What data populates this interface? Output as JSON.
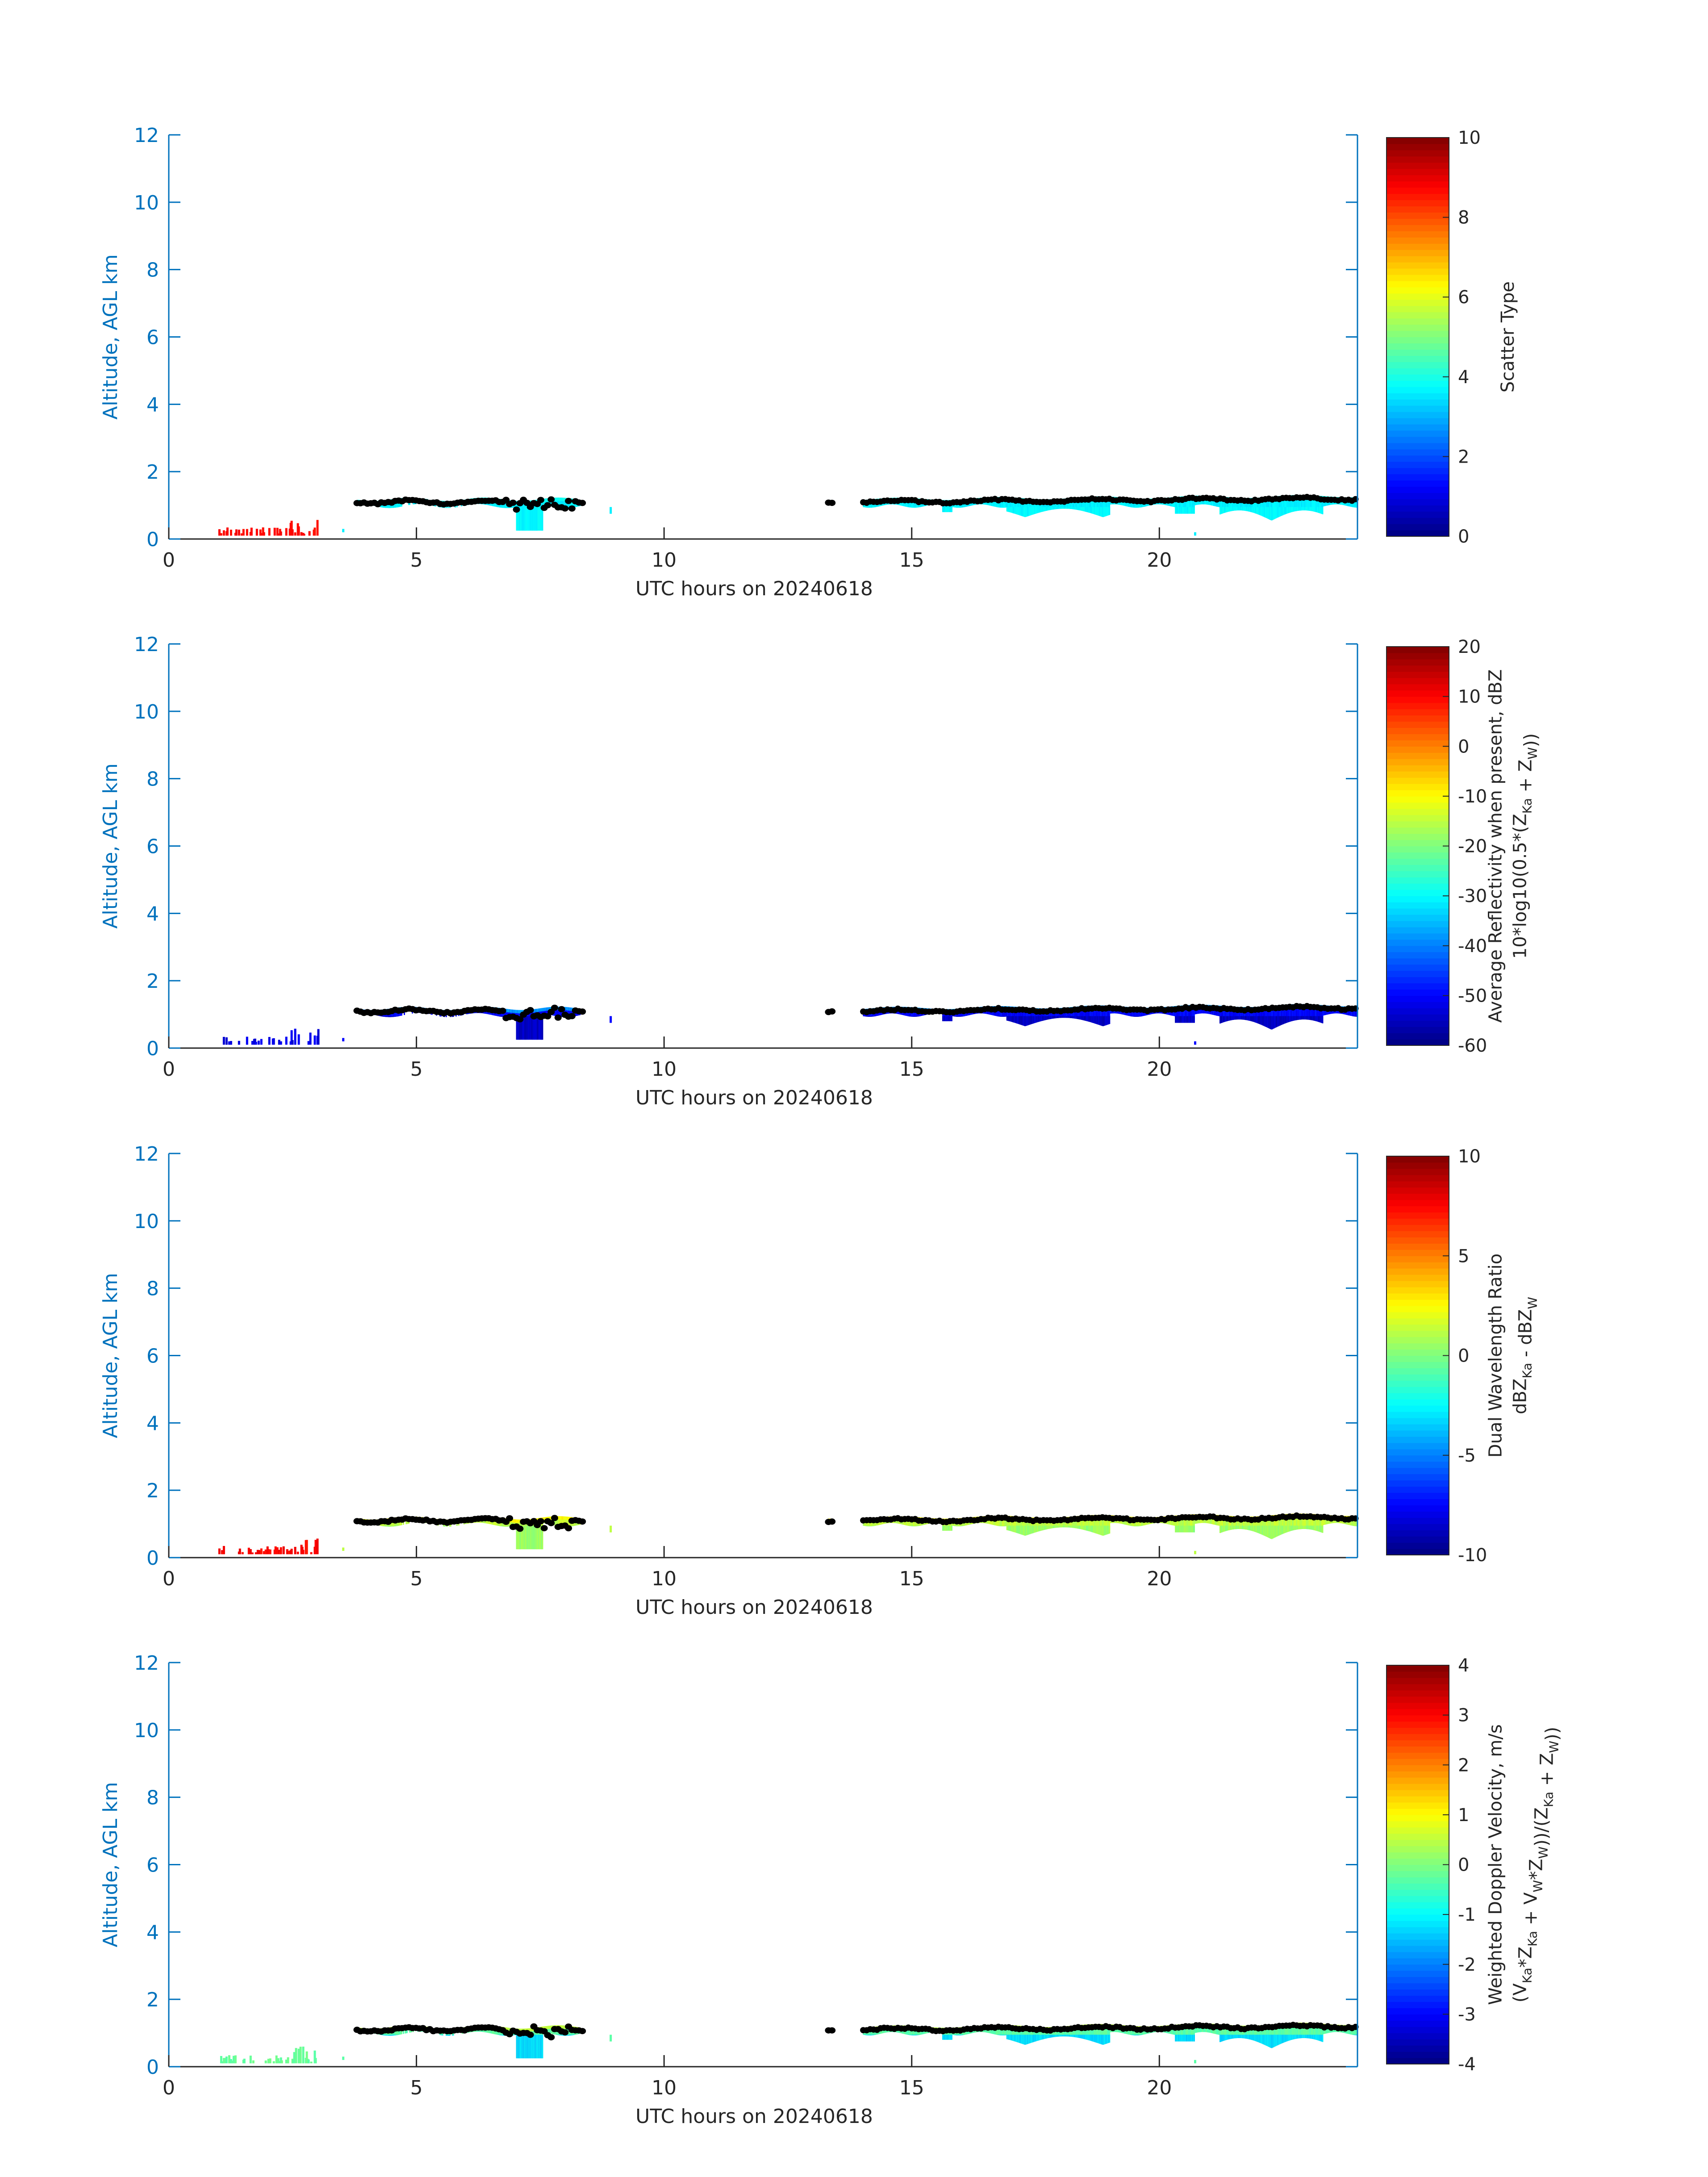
{
  "figure": {
    "xlabel": "UTC hours on 20240618",
    "ylabel": "Altitude, AGL km"
  },
  "chart_data": [
    {
      "type": "heatmap",
      "title": "",
      "xlabel": "UTC hours on 20240618",
      "ylabel": "Altitude, AGL km",
      "xlim": [
        0,
        24
      ],
      "ylim": [
        0,
        12
      ],
      "xticks": [
        0,
        5,
        10,
        15,
        20
      ],
      "yticks": [
        0,
        2,
        4,
        6,
        8,
        10,
        12
      ],
      "grid": false,
      "colorbar": {
        "label_lines": [
          "Scatter Type"
        ],
        "min": 0,
        "max": 10,
        "ticks": [
          0,
          2,
          4,
          6,
          8,
          10
        ],
        "tick_labels": [
          "0",
          "2",
          "4",
          "6",
          "8",
          "10"
        ],
        "colormap": "jet"
      },
      "fill_hint": "typical value 3.6 (cyan); red (8.7) near-surface drizzle 1-3 UTC",
      "series": [
        {
          "name": "echo",
          "x_start": [
            1.0,
            3.8,
            13.3,
            14.0
          ],
          "x_end": [
            3.0,
            8.4,
            13.4,
            24.0
          ]
        }
      ]
    },
    {
      "type": "heatmap",
      "title": "",
      "xlabel": "UTC hours on 20240618",
      "ylabel": "Altitude, AGL km",
      "xlim": [
        0,
        24
      ],
      "ylim": [
        0,
        12
      ],
      "xticks": [
        0,
        5,
        10,
        15,
        20
      ],
      "yticks": [
        0,
        2,
        4,
        6,
        8,
        10,
        12
      ],
      "grid": false,
      "colorbar": {
        "label_lines": [
          "Average Reflectivity when present, dBZ",
          "10*log10(0.5*(Z_Ka + Z_W))"
        ],
        "min": -60,
        "max": 20,
        "ticks": [
          -60,
          -50,
          -40,
          -30,
          -20,
          -10,
          0,
          10,
          20
        ],
        "tick_labels": [
          "-60",
          "-50",
          "-40",
          "-30",
          "-20",
          "-10",
          "0",
          "10",
          "20"
        ],
        "colormap": "jet"
      },
      "fill_hint": "typical value -50 dBZ (blue); cloud base near -40 dBZ",
      "series": [
        {
          "name": "echo",
          "x_start": [
            1.0,
            3.8,
            13.3,
            14.0
          ],
          "x_end": [
            3.0,
            8.4,
            13.4,
            24.0
          ]
        }
      ]
    },
    {
      "type": "heatmap",
      "title": "",
      "xlabel": "UTC hours on 20240618",
      "ylabel": "Altitude, AGL km",
      "xlim": [
        0,
        24
      ],
      "ylim": [
        0,
        12
      ],
      "xticks": [
        0,
        5,
        10,
        15,
        20
      ],
      "yticks": [
        0,
        2,
        4,
        6,
        8,
        10,
        12
      ],
      "grid": false,
      "colorbar": {
        "label_lines": [
          "Dual Wavelength Ratio",
          "dBZ_Ka - dBZ_W"
        ],
        "min": -10,
        "max": 10,
        "ticks": [
          -10,
          -5,
          0,
          5,
          10
        ],
        "tick_labels": [
          "-10",
          "-5",
          "0",
          "5",
          "10"
        ],
        "colormap": "jet"
      },
      "fill_hint": "typical value 0-2 dB (green/yellow)",
      "series": [
        {
          "name": "echo",
          "x_start": [
            1.0,
            3.8,
            13.3,
            14.0
          ],
          "x_end": [
            3.0,
            8.4,
            13.4,
            24.0
          ]
        }
      ]
    },
    {
      "type": "heatmap",
      "title": "",
      "xlabel": "UTC hours on 20240618",
      "ylabel": "Altitude, AGL km",
      "xlim": [
        0,
        24
      ],
      "ylim": [
        0,
        12
      ],
      "xticks": [
        0,
        5,
        10,
        15,
        20
      ],
      "yticks": [
        0,
        2,
        4,
        6,
        8,
        10,
        12
      ],
      "grid": false,
      "colorbar": {
        "label_lines": [
          "Weighted Doppler Velocity, m/s",
          "(V_Ka*Z_Ka + V_W*Z_W))/(Z_Ka + Z_W))"
        ],
        "min": -4,
        "max": 4,
        "ticks": [
          -4,
          -3,
          -2,
          -1,
          0,
          1,
          2,
          3,
          4
        ],
        "tick_labels": [
          "-4",
          "-3",
          "-2",
          "-1",
          "0",
          "1",
          "2",
          "3",
          "4"
        ],
        "colormap": "jet"
      },
      "fill_hint": "typical value -0.3 m/s (green); downdrafts near -1.2 m/s (cyan)",
      "series": [
        {
          "name": "echo",
          "x_start": [
            1.0,
            3.8,
            13.3,
            14.0
          ],
          "x_end": [
            3.0,
            8.4,
            13.4,
            24.0
          ]
        }
      ]
    }
  ],
  "colors": {
    "axis": "#0072bd",
    "text": "#262626",
    "black_dots": "#000000"
  }
}
